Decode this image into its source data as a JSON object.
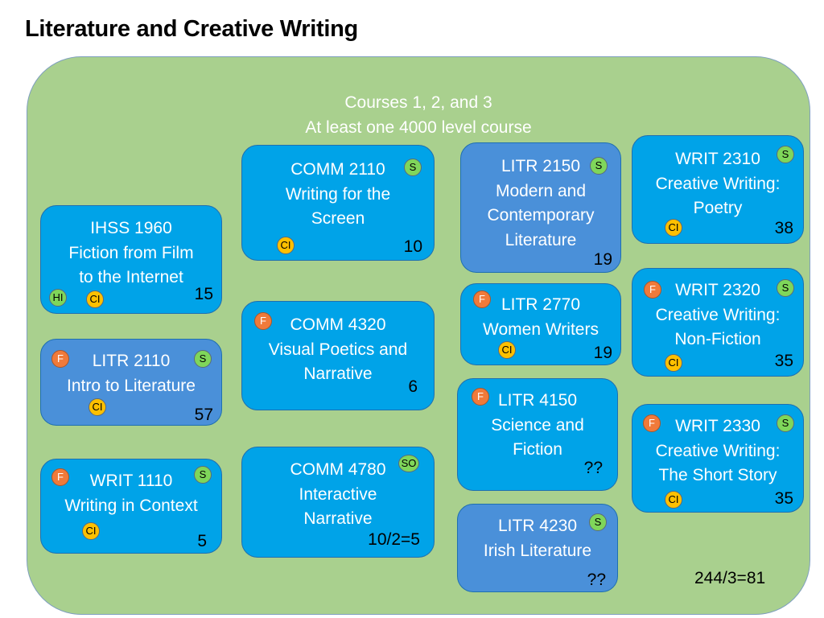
{
  "title": "Literature and Creative Writing",
  "header": {
    "line1": "Courses 1, 2, and 3",
    "line2": "At least one 4000 level course"
  },
  "total": "244/3=81",
  "colors": {
    "panel": "#a9d08e",
    "card_bright": "#00a3e8",
    "card_dark": "#4a90d9",
    "badge_F": "#f07a3a",
    "badge_S": "#7fd65a",
    "badge_CI": "#ffc000"
  },
  "courses": [
    {
      "code": "IHSS 1960",
      "lines": [
        "Fiction from Film",
        "to the Internet"
      ],
      "count": "15",
      "badges": [
        "HI",
        "CI"
      ]
    },
    {
      "code": "LITR 2110",
      "lines": [
        "Intro to Literature"
      ],
      "count": "57",
      "badges": [
        "F",
        "S",
        "CI"
      ]
    },
    {
      "code": "WRIT 1110",
      "lines": [
        "Writing in Context"
      ],
      "count": "5",
      "badges": [
        "F",
        "S",
        "CI"
      ]
    },
    {
      "code": "COMM 2110",
      "lines": [
        "Writing for the",
        "Screen"
      ],
      "count": "10",
      "badges": [
        "S",
        "CI"
      ]
    },
    {
      "code": "COMM 4320",
      "lines": [
        "Visual Poetics and",
        "Narrative"
      ],
      "count": "6",
      "badges": [
        "F"
      ]
    },
    {
      "code": "COMM 4780",
      "lines": [
        "Interactive",
        "Narrative"
      ],
      "count": "10/2=5",
      "badges": [
        "SO"
      ]
    },
    {
      "code": "LITR 2150",
      "lines": [
        "Modern and",
        "Contemporary",
        "Literature"
      ],
      "count": "19",
      "badges": [
        "S"
      ]
    },
    {
      "code": "LITR 2770",
      "lines": [
        "Women Writers"
      ],
      "count": "19",
      "badges": [
        "F",
        "CI"
      ]
    },
    {
      "code": "LITR 4150",
      "lines": [
        "Science and",
        "Fiction"
      ],
      "count": "??",
      "badges": [
        "F"
      ]
    },
    {
      "code": "LITR 4230",
      "lines": [
        "Irish Literature"
      ],
      "count": "??",
      "badges": [
        "S"
      ]
    },
    {
      "code": "WRIT 2310",
      "lines": [
        "Creative Writing:",
        "Poetry"
      ],
      "count": "38",
      "badges": [
        "S",
        "CI"
      ]
    },
    {
      "code": "WRIT 2320",
      "lines": [
        "Creative Writing:",
        "Non-Fiction"
      ],
      "count": "35",
      "badges": [
        "F",
        "S",
        "CI"
      ]
    },
    {
      "code": "WRIT 2330",
      "lines": [
        "Creative Writing:",
        "The Short Story"
      ],
      "count": "35",
      "badges": [
        "F",
        "S",
        "CI"
      ]
    }
  ]
}
